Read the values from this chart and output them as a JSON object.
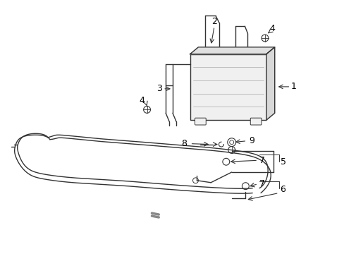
{
  "bg_color": "#ffffff",
  "line_color": "#333333",
  "text_color": "#000000",
  "label_fs": 9,
  "lw": 1.0
}
